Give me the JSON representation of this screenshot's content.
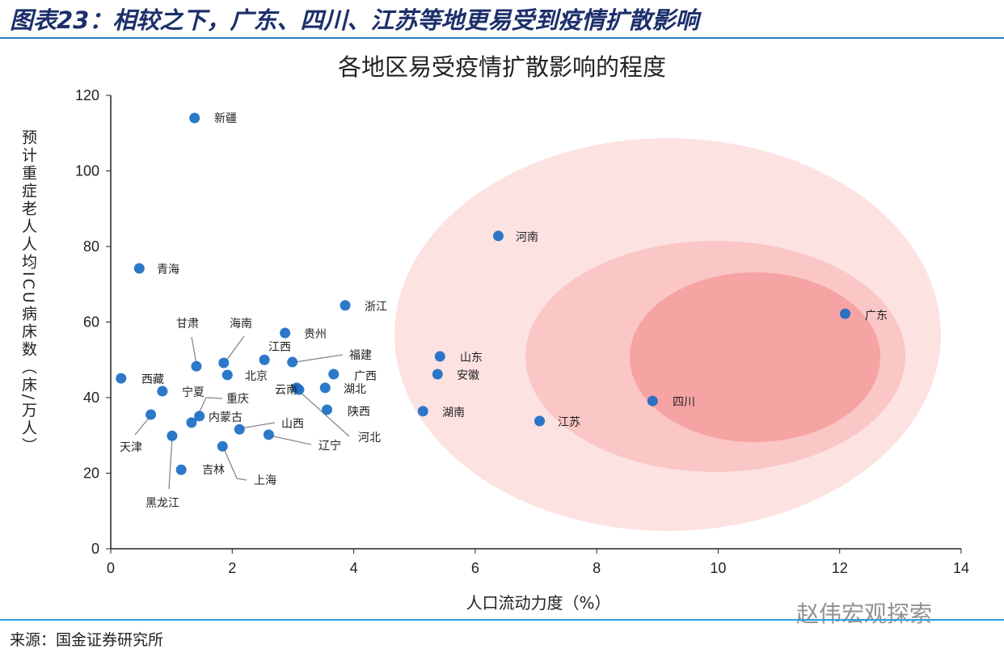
{
  "header": {
    "figure_title": "图表23：相较之下，广东、四川、江苏等地更易受到疫情扩散影响"
  },
  "footer": {
    "source": "来源：国金证券研究所",
    "watermark": "赵伟宏观探索"
  },
  "colors": {
    "point": "#1a6dc4",
    "zone_outer": "#fde2e2",
    "zone_middle": "#fac6c6",
    "zone_inner": "#f6a3a3",
    "title": "#1c2f6b"
  },
  "chart_data": {
    "type": "scatter",
    "title": "各地区易受疫情扩散影响的程度",
    "xlabel": "人口流动力度（%）",
    "ylabel": "预计重症老人人均ICU病床数（床/万人）",
    "xlim": [
      0,
      14
    ],
    "ylim": [
      0,
      120
    ],
    "xticks": [
      "0",
      "2",
      "4",
      "6",
      "8",
      "10",
      "12",
      "14"
    ],
    "yticks": [
      "0",
      "20",
      "40",
      "60",
      "80",
      "100",
      "120"
    ],
    "grid": false,
    "points": [
      {
        "name": "新疆",
        "x": 1.38,
        "y": 114.0
      },
      {
        "name": "青海",
        "x": 0.47,
        "y": 74.2
      },
      {
        "name": "河南",
        "x": 6.38,
        "y": 82.8
      },
      {
        "name": "浙江",
        "x": 3.86,
        "y": 64.4
      },
      {
        "name": "广东",
        "x": 12.09,
        "y": 62.2
      },
      {
        "name": "贵州",
        "x": 2.87,
        "y": 57.1
      },
      {
        "name": "甘肃",
        "x": 1.41,
        "y": 48.3
      },
      {
        "name": "海南",
        "x": 1.86,
        "y": 49.2
      },
      {
        "name": "江西",
        "x": 2.53,
        "y": 50.0
      },
      {
        "name": "福建",
        "x": 2.99,
        "y": 49.4
      },
      {
        "name": "山东",
        "x": 5.42,
        "y": 50.9
      },
      {
        "name": "西藏",
        "x": 0.17,
        "y": 45.1
      },
      {
        "name": "北京",
        "x": 1.92,
        "y": 46.0
      },
      {
        "name": "广西",
        "x": 3.67,
        "y": 46.2
      },
      {
        "name": "安徽",
        "x": 5.38,
        "y": 46.2
      },
      {
        "name": "宁夏",
        "x": 0.85,
        "y": 41.7
      },
      {
        "name": "云南",
        "x": 3.06,
        "y": 42.6
      },
      {
        "name": "河北",
        "x": 3.1,
        "y": 42.1
      },
      {
        "name": "湖北",
        "x": 3.53,
        "y": 42.6
      },
      {
        "name": "四川",
        "x": 8.92,
        "y": 39.1
      },
      {
        "name": "陕西",
        "x": 3.56,
        "y": 36.8
      },
      {
        "name": "湖南",
        "x": 5.14,
        "y": 36.4
      },
      {
        "name": "天津",
        "x": 0.66,
        "y": 35.5
      },
      {
        "name": "重庆",
        "x": 1.46,
        "y": 35.1
      },
      {
        "name": "内蒙古",
        "x": 1.33,
        "y": 33.4
      },
      {
        "name": "江苏",
        "x": 7.06,
        "y": 33.8
      },
      {
        "name": "山西",
        "x": 2.12,
        "y": 31.6
      },
      {
        "name": "辽宁",
        "x": 2.6,
        "y": 30.2
      },
      {
        "name": "黑龙江",
        "x": 1.01,
        "y": 29.9
      },
      {
        "name": "上海",
        "x": 1.84,
        "y": 27.1
      },
      {
        "name": "吉林",
        "x": 1.16,
        "y": 20.9
      }
    ]
  }
}
